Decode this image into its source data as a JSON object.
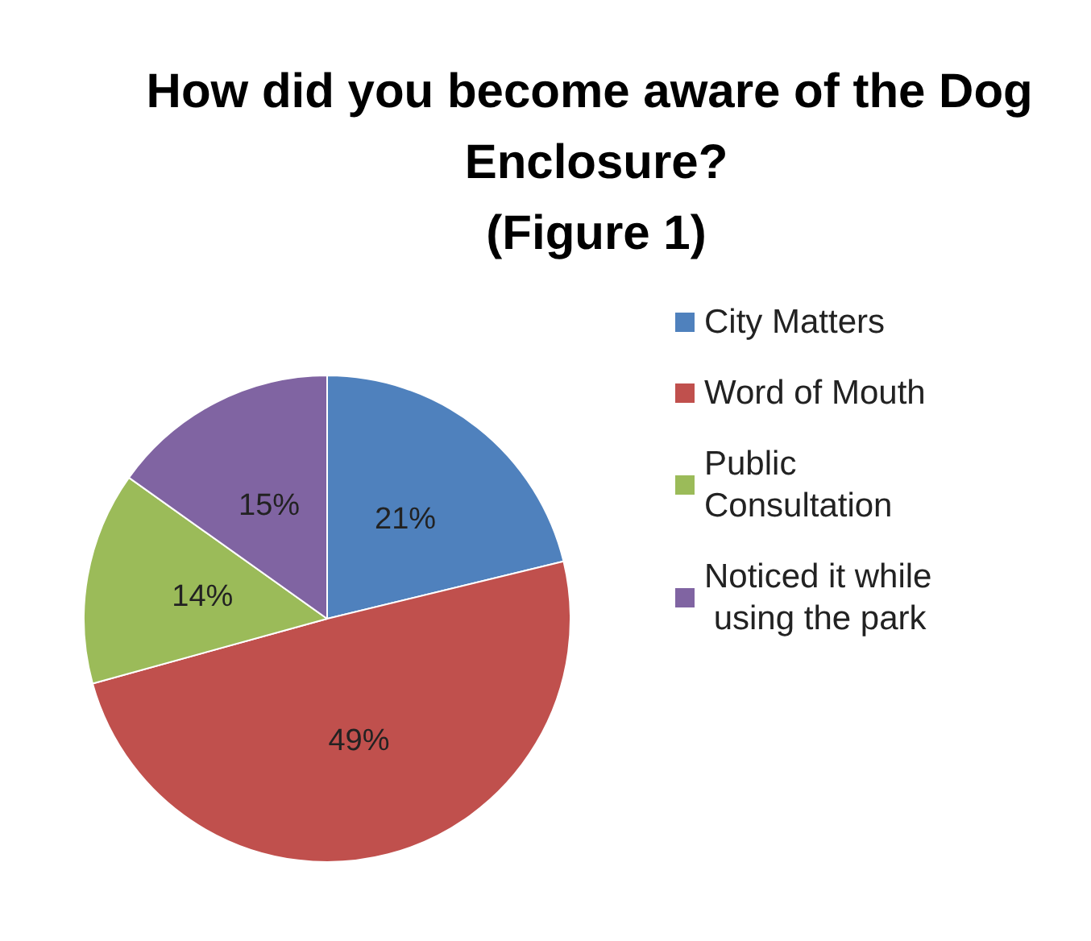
{
  "chart_data": {
    "type": "pie",
    "title": "How did you become aware of the Dog Enclosure?\n(Figure 1)",
    "categories": [
      "City Matters",
      "Word of Mouth",
      "Public Consultation",
      "Noticed it while using the park"
    ],
    "values": [
      21,
      49,
      14,
      15
    ],
    "colors": [
      "#4f81bd",
      "#c0504d",
      "#9bbb59",
      "#8064a2"
    ],
    "value_labels": [
      "21%",
      "49%",
      "14%",
      "15%"
    ],
    "legend": "right"
  }
}
